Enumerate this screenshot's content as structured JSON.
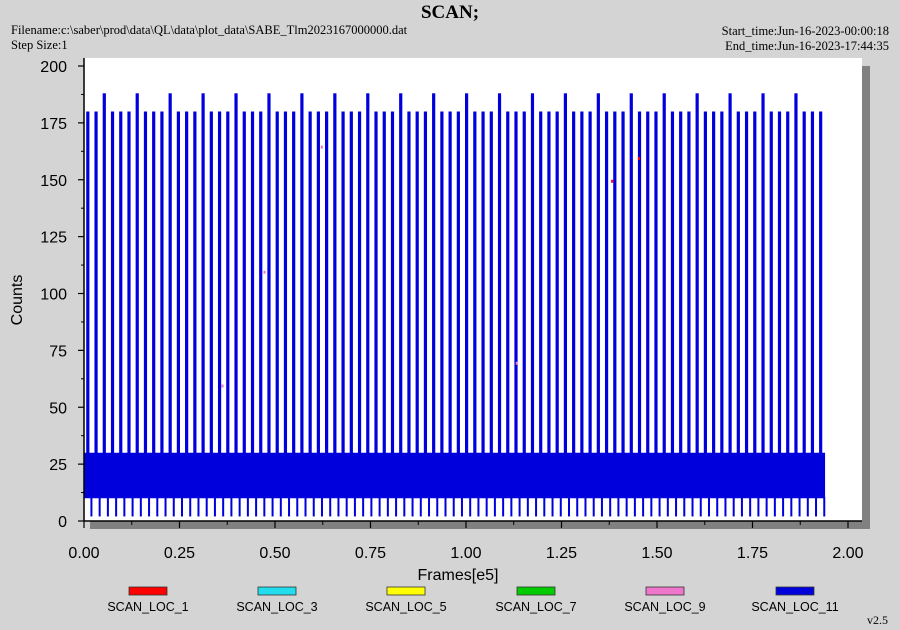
{
  "header": {
    "title": "SCAN;",
    "filename": "Filename:c:\\saber\\prod\\data\\QL\\data\\plot_data\\SABE_Tlm2023167000000.dat",
    "step_size": "Step Size:1",
    "start_time": "Start_time:Jun-16-2023-00:00:18",
    "end_time": "End_time:Jun-16-2023-17:44:35"
  },
  "version": "v2.5",
  "colors": {
    "panel_bg": "#d4d4d4",
    "plot_bg": "#ffffff",
    "shadow": "#808080",
    "main_series": "#0000dd"
  },
  "chart_data": {
    "type": "line",
    "xlabel": "Frames[e5]",
    "ylabel": "Counts",
    "xlim": [
      0,
      2.0
    ],
    "ylim": [
      0,
      200
    ],
    "xticks": [
      "0.00",
      "0.25",
      "0.50",
      "0.75",
      "1.00",
      "1.25",
      "1.50",
      "1.75",
      "2.00"
    ],
    "yticks": [
      "0",
      "25",
      "50",
      "75",
      "100",
      "125",
      "150",
      "175",
      "200"
    ],
    "legend_position": "bottom",
    "series": [
      {
        "name": "SCAN_LOC_1",
        "color": "#ff0000",
        "baseline": [
          10,
          30
        ],
        "peak": 180
      },
      {
        "name": "SCAN_LOC_3",
        "color": "#22ddee",
        "baseline": [
          10,
          30
        ],
        "peak": 180
      },
      {
        "name": "SCAN_LOC_5",
        "color": "#ffff00",
        "baseline": [
          10,
          30
        ],
        "peak": 180
      },
      {
        "name": "SCAN_LOC_7",
        "color": "#00cc00",
        "baseline": [
          10,
          30
        ],
        "peak": 180
      },
      {
        "name": "SCAN_LOC_9",
        "color": "#ee77cc",
        "baseline": [
          10,
          30
        ],
        "peak": 180
      },
      {
        "name": "SCAN_LOC_11",
        "color": "#0000dd",
        "baseline": [
          10,
          30
        ],
        "peak": 188
      }
    ],
    "x_extent": [
      0,
      1.94
    ],
    "band": {
      "low": 10,
      "high": 30
    },
    "spikes": {
      "count": 90,
      "tall": 180,
      "taller": 188,
      "dip": 2
    }
  }
}
